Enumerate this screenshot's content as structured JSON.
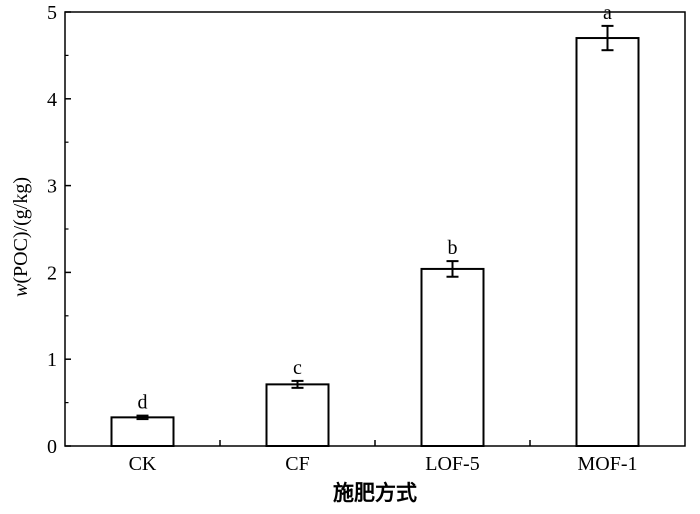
{
  "chart_data": {
    "type": "bar",
    "categories": [
      "CK",
      "CF",
      "LOF-5",
      "MOF-1"
    ],
    "values": [
      0.33,
      0.71,
      2.04,
      4.7
    ],
    "errors": [
      0.02,
      0.04,
      0.09,
      0.14
    ],
    "significance_letters": [
      "d",
      "c",
      "b",
      "a"
    ],
    "xlabel": "施肥方式",
    "ylabel_italic": "w",
    "ylabel_rest": "(POC)/(g/kg)",
    "ylim": [
      0,
      5
    ],
    "yticks": [
      0,
      1,
      2,
      3,
      4,
      5
    ],
    "bar_fill": "#ffffff",
    "bar_stroke": "#000000",
    "grid": false
  }
}
